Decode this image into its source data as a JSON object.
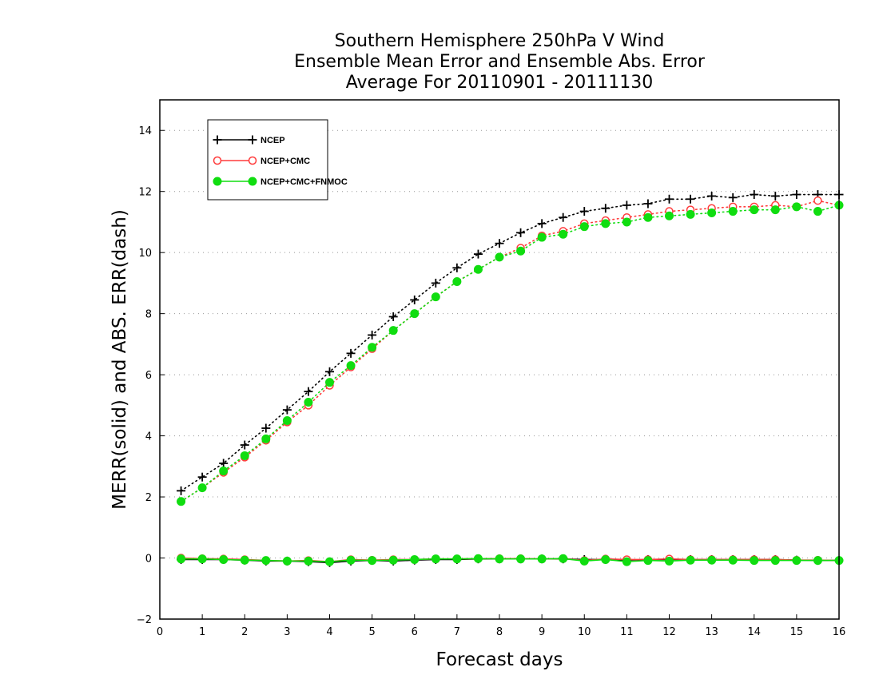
{
  "chart_data": {
    "type": "line",
    "title": [
      "Southern Hemisphere 250hPa V Wind",
      "Ensemble Mean Error and Ensemble Abs. Error",
      "Average For 20110901 - 20111130"
    ],
    "xlabel": "Forecast days",
    "ylabel": "MERR(solid) and ABS. ERR(dash)",
    "xlim": [
      0,
      16
    ],
    "ylim": [
      -2,
      15
    ],
    "xticks": [
      "0",
      "1",
      "2",
      "3",
      "4",
      "5",
      "6",
      "7",
      "8",
      "9",
      "10",
      "11",
      "12",
      "13",
      "14",
      "15",
      "16"
    ],
    "yticks": [
      "−2",
      "0",
      "2",
      "4",
      "6",
      "8",
      "10",
      "12",
      "14"
    ],
    "grid": "horizontal dotted",
    "legend_position": "top-left",
    "x": [
      0.5,
      1,
      1.5,
      2,
      2.5,
      3,
      3.5,
      4,
      4.5,
      5,
      5.5,
      6,
      6.5,
      7,
      7.5,
      8,
      8.5,
      9,
      9.5,
      10,
      10.5,
      11,
      11.5,
      12,
      12.5,
      13,
      13.5,
      14,
      14.5,
      15,
      15.5,
      16
    ],
    "series": [
      {
        "name": "NCEP",
        "color": "#000000",
        "marker": "plus",
        "abs_err": [
          2.2,
          2.65,
          3.1,
          3.7,
          4.25,
          4.85,
          5.45,
          6.1,
          6.7,
          7.3,
          7.9,
          8.45,
          9.0,
          9.5,
          9.95,
          10.3,
          10.65,
          10.95,
          11.15,
          11.35,
          11.45,
          11.55,
          11.6,
          11.75,
          11.75,
          11.85,
          11.8,
          11.9,
          11.85,
          11.9,
          11.9,
          11.9
        ],
        "mean_err": [
          -0.05,
          -0.05,
          -0.05,
          -0.07,
          -0.1,
          -0.1,
          -0.12,
          -0.15,
          -0.1,
          -0.08,
          -0.1,
          -0.07,
          -0.05,
          -0.05,
          -0.03,
          -0.03,
          -0.03,
          -0.03,
          -0.03,
          -0.05,
          -0.05,
          -0.07,
          -0.05,
          -0.05,
          -0.05,
          -0.05,
          -0.05,
          -0.05,
          -0.05,
          -0.07,
          -0.08,
          -0.08
        ]
      },
      {
        "name": "NCEP+CMC",
        "color": "#ff3b3b",
        "marker": "open-circle",
        "abs_err": [
          1.85,
          2.3,
          2.8,
          3.3,
          3.85,
          4.45,
          5.0,
          5.65,
          6.25,
          6.85,
          7.45,
          8.0,
          8.55,
          9.05,
          9.45,
          9.85,
          10.15,
          10.55,
          10.7,
          10.95,
          11.05,
          11.15,
          11.25,
          11.35,
          11.4,
          11.45,
          11.5,
          11.5,
          11.55,
          11.5,
          11.7,
          11.55
        ],
        "mean_err": [
          0.0,
          -0.02,
          -0.03,
          -0.05,
          -0.08,
          -0.1,
          -0.08,
          -0.12,
          -0.05,
          -0.07,
          -0.05,
          -0.05,
          -0.03,
          -0.03,
          -0.02,
          -0.02,
          -0.02,
          -0.03,
          -0.02,
          -0.08,
          -0.03,
          -0.05,
          -0.05,
          -0.03,
          -0.05,
          -0.05,
          -0.05,
          -0.05,
          -0.05,
          -0.07,
          -0.07,
          -0.08
        ]
      },
      {
        "name": "NCEP+CMC+FNMOC",
        "color": "#10dd10",
        "marker": "filled-circle",
        "abs_err": [
          1.85,
          2.3,
          2.85,
          3.35,
          3.9,
          4.5,
          5.1,
          5.75,
          6.3,
          6.9,
          7.45,
          8.0,
          8.55,
          9.05,
          9.45,
          9.85,
          10.05,
          10.5,
          10.6,
          10.85,
          10.95,
          11.0,
          11.15,
          11.2,
          11.25,
          11.3,
          11.35,
          11.4,
          11.4,
          11.5,
          11.35,
          11.55
        ],
        "mean_err": [
          -0.03,
          -0.03,
          -0.05,
          -0.07,
          -0.08,
          -0.1,
          -0.1,
          -0.12,
          -0.07,
          -0.08,
          -0.07,
          -0.05,
          -0.03,
          -0.03,
          -0.02,
          -0.03,
          -0.03,
          -0.03,
          -0.02,
          -0.1,
          -0.05,
          -0.12,
          -0.08,
          -0.1,
          -0.07,
          -0.07,
          -0.07,
          -0.08,
          -0.08,
          -0.08,
          -0.08,
          -0.08
        ]
      }
    ]
  }
}
